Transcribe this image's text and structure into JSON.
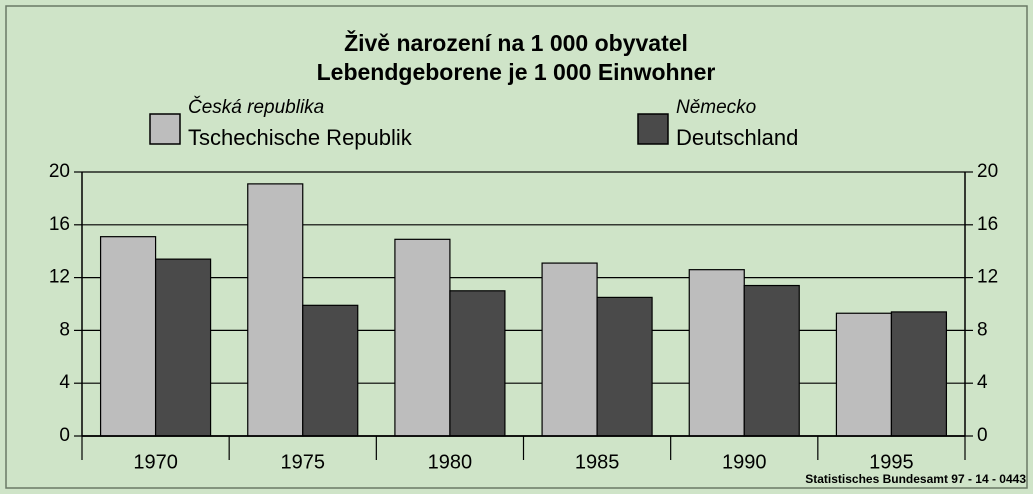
{
  "chart_data": {
    "type": "bar",
    "title": "Živě narození na 1 000 obyvatel",
    "subtitle": "Lebendgeborene je 1 000 Einwohner",
    "source": "Statistisches Bundesamt 97 - 14 - 0443",
    "categories": [
      "1970",
      "1975",
      "1980",
      "1985",
      "1990",
      "1995"
    ],
    "series": [
      {
        "name": "Tschechische Republik",
        "name_cs": "Česká republika",
        "color": "#bdbdbd",
        "values": [
          15.1,
          19.1,
          14.9,
          13.1,
          12.6,
          9.3
        ]
      },
      {
        "name": "Deutschland",
        "name_cs": "Německo",
        "color": "#4a4a4a",
        "values": [
          13.4,
          9.9,
          11.0,
          10.5,
          11.4,
          9.4
        ]
      }
    ],
    "ylim": [
      0,
      20
    ],
    "yticks": [
      0,
      4,
      8,
      12,
      16,
      20
    ],
    "y2lim": [
      0,
      20
    ],
    "y2ticks": [
      0,
      4,
      8,
      12,
      16,
      20
    ],
    "grid": true
  }
}
